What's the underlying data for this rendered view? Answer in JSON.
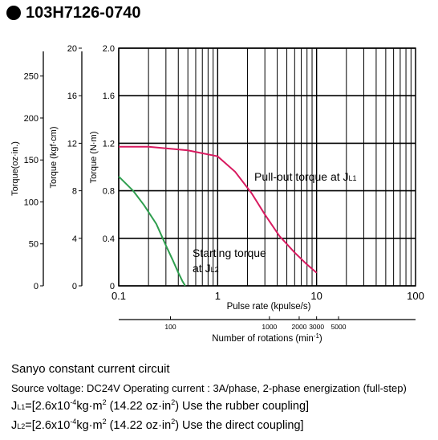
{
  "header": {
    "title": "103H7126-0740"
  },
  "chart_data": {
    "type": "line",
    "xscale": "log",
    "xlabel": "Pulse rate (kpulse/s)",
    "xlim": [
      0.1,
      100
    ],
    "xticks": [
      "0.1",
      "1",
      "10",
      "100"
    ],
    "secondary_x": {
      "label": "Number of rotations (min",
      "label_exponent": "-1",
      "label_suffix": ")",
      "ticks": [
        {
          "value": 100,
          "label": "100"
        },
        {
          "value": 1000,
          "label": "1000"
        },
        {
          "value": 2000,
          "label": "2000"
        },
        {
          "value": 3000,
          "label": "3000"
        },
        {
          "value": 5000,
          "label": "5000"
        }
      ]
    },
    "y_axes": [
      {
        "label": "Torque (N·m)",
        "ticks": [
          "0",
          "0.4",
          "0.8",
          "1.2",
          "1.6",
          "2.0"
        ],
        "ylim": [
          0,
          2.0
        ]
      },
      {
        "label": "Torque (kgf·cm)",
        "ticks": [
          "0",
          "4",
          "8",
          "12",
          "16",
          "20"
        ],
        "ylim": [
          0,
          20
        ]
      },
      {
        "label": "Torque(oz·in.)",
        "ticks": [
          "0",
          "50",
          "100",
          "150",
          "200",
          "250"
        ]
      }
    ],
    "grid": true,
    "series": [
      {
        "name": "Pull-out torque at J",
        "name_sub": "L1",
        "color": "#d81b60",
        "x": [
          0.1,
          0.2,
          0.5,
          1.0,
          1.5,
          2.2,
          3.0,
          4.2,
          6.0,
          8.0,
          10.0
        ],
        "y": [
          1.17,
          1.17,
          1.14,
          1.09,
          0.96,
          0.78,
          0.6,
          0.42,
          0.28,
          0.18,
          0.11
        ]
      },
      {
        "name": "Starting torque at J",
        "name_line1": "Starting torque",
        "name_line2": "at J",
        "name_sub": "L2",
        "color": "#2e9e4e",
        "x": [
          0.1,
          0.14,
          0.18,
          0.24,
          0.3,
          0.35,
          0.4,
          0.44,
          0.47
        ],
        "y": [
          0.92,
          0.8,
          0.68,
          0.52,
          0.34,
          0.22,
          0.11,
          0.04,
          0.0
        ]
      }
    ]
  },
  "captions": {
    "line1": "Sanyo constant current circuit",
    "line2": "Source voltage: DC24V Operating current : 3A/phase, 2-phase energization (full-step)",
    "line3": {
      "prefix": "J",
      "sub": "L1",
      "a": "=[2.6x10",
      "exp": "-4",
      "b": "kg·m",
      "sq": "2",
      "c": " (14.22 oz·in",
      "sq2": "2",
      "d": ") Use the rubber coupling]"
    },
    "line4": {
      "prefix": "J",
      "sub": "L2",
      "a": "=[2.6x10",
      "exp": "-4",
      "b": "kg·m",
      "sq": "2",
      "c": " (14.22 oz·in",
      "sq2": "2",
      "d": ") Use the direct coupling]"
    }
  }
}
